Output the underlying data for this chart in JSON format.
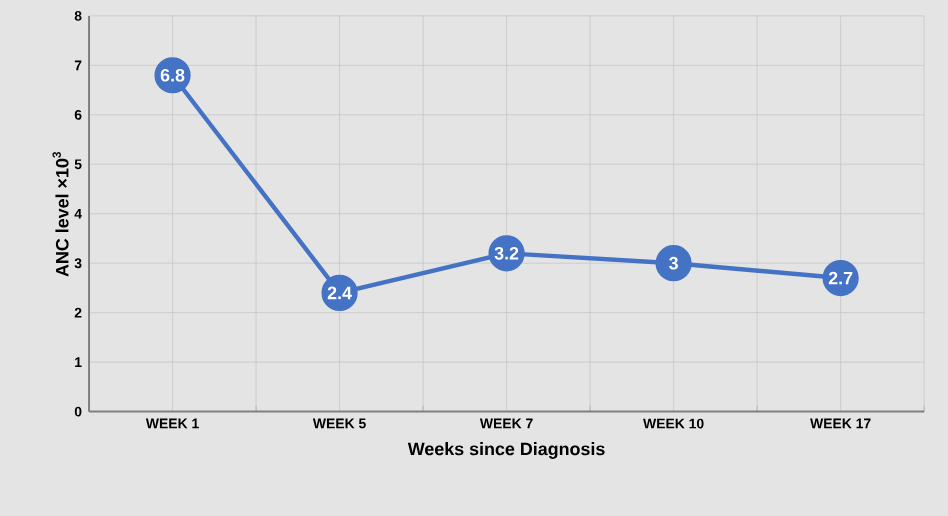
{
  "chart_data": {
    "type": "line",
    "xlabel": "Weeks since Diagnosis",
    "ylabel": "ANC level ×10$^{3}$",
    "categories": [
      "WEEK 1",
      "WEEK 5",
      "WEEK 7",
      "WEEK 10",
      "WEEK 17"
    ],
    "values": [
      6.8,
      2.4,
      3.2,
      3,
      2.7
    ],
    "color": "#4472c4",
    "ylim": [
      0,
      8
    ],
    "yticks": [
      0,
      1,
      2,
      3,
      4,
      5,
      6,
      7,
      8
    ],
    "grid": true,
    "marker": "circle",
    "line_style": "solid",
    "data_labels": true
  }
}
